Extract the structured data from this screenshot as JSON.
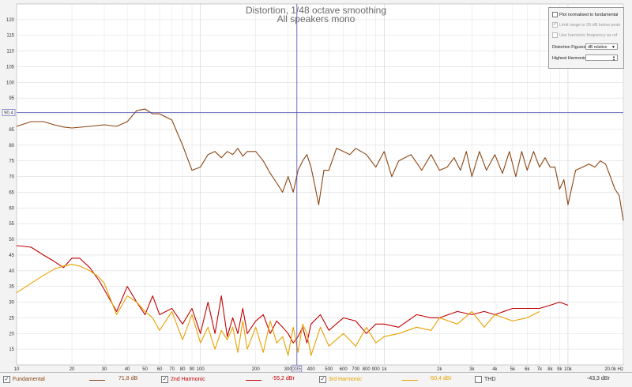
{
  "chart_data": {
    "type": "line",
    "title": "Distortion, 1/48 octave smoothing",
    "subtitle": "All speakers mono",
    "x_scale": "log",
    "xlim": [
      10,
      20000
    ],
    "ylim": [
      10,
      125
    ],
    "grid": true,
    "x_ticks": [
      {
        "v": 10,
        "l": "10"
      },
      {
        "v": 20,
        "l": "20"
      },
      {
        "v": 30,
        "l": "30"
      },
      {
        "v": 40,
        "l": "40"
      },
      {
        "v": 50,
        "l": "50"
      },
      {
        "v": 60,
        "l": "60"
      },
      {
        "v": 70,
        "l": "70"
      },
      {
        "v": 80,
        "l": "80"
      },
      {
        "v": 90,
        "l": "90"
      },
      {
        "v": 100,
        "l": "100"
      },
      {
        "v": 200,
        "l": "200"
      },
      {
        "v": 300,
        "l": "300"
      },
      {
        "v": 400,
        "l": "400"
      },
      {
        "v": 500,
        "l": "500"
      },
      {
        "v": 600,
        "l": "600"
      },
      {
        "v": 700,
        "l": "700"
      },
      {
        "v": 800,
        "l": "800"
      },
      {
        "v": 900,
        "l": "900"
      },
      {
        "v": 1000,
        "l": "1k"
      },
      {
        "v": 2000,
        "l": "2k"
      },
      {
        "v": 3000,
        "l": "3k"
      },
      {
        "v": 4000,
        "l": "4k"
      },
      {
        "v": 5000,
        "l": "5k"
      },
      {
        "v": 6000,
        "l": "6k"
      },
      {
        "v": 7000,
        "l": "7k"
      },
      {
        "v": 8000,
        "l": "8k"
      },
      {
        "v": 9000,
        "l": "9k"
      },
      {
        "v": 10000,
        "l": "10k"
      },
      {
        "v": 20000,
        "l": "20.0k Hz"
      }
    ],
    "y_ticks": [
      15,
      20,
      25,
      30,
      35,
      40,
      45,
      50,
      55,
      60,
      65,
      70,
      75,
      80,
      85,
      90,
      95,
      100,
      105,
      110,
      115,
      120
    ],
    "cursor": {
      "x": 335,
      "x_label": "335",
      "y": 90.4,
      "y_label": "90.4"
    },
    "series": [
      {
        "name": "Fundamental",
        "color": "#8b4513",
        "x": [
          10,
          12,
          14,
          16,
          18,
          20,
          25,
          30,
          35,
          40,
          45,
          50,
          55,
          60,
          70,
          80,
          90,
          100,
          110,
          120,
          130,
          140,
          150,
          160,
          170,
          180,
          200,
          220,
          240,
          260,
          280,
          300,
          320,
          340,
          360,
          380,
          400,
          420,
          440,
          470,
          500,
          550,
          600,
          650,
          700,
          800,
          900,
          1000,
          1100,
          1200,
          1400,
          1600,
          1800,
          2000,
          2200,
          2400,
          2600,
          2800,
          3000,
          3300,
          3600,
          4000,
          4400,
          4800,
          5200,
          5600,
          6000,
          6500,
          7000,
          7500,
          8000,
          8500,
          9000,
          9500,
          10000,
          11000,
          12000,
          13000,
          14000,
          15000,
          16000,
          17000,
          18000,
          19000,
          20000
        ],
        "values": [
          86,
          87.5,
          87.5,
          86.5,
          85.8,
          85.5,
          86,
          86.5,
          86,
          87.5,
          91,
          91.5,
          90,
          90,
          88,
          80,
          72,
          73,
          77,
          78,
          76,
          78,
          77,
          79,
          76.5,
          78,
          78,
          75,
          71,
          68,
          65,
          70,
          65,
          72,
          75,
          77,
          73,
          67,
          61,
          72,
          72,
          79,
          78,
          77,
          79,
          77,
          73,
          78,
          70,
          75,
          77,
          72,
          77,
          72,
          73,
          76,
          72,
          78,
          70,
          78,
          72,
          77,
          71,
          78,
          70,
          78,
          72,
          78,
          73,
          76,
          73,
          73,
          66,
          69,
          61,
          72,
          73,
          74,
          73,
          75,
          74,
          70,
          66,
          64,
          56
        ]
      },
      {
        "name": "2nd Harmonic",
        "color": "#c00000",
        "x": [
          10,
          12,
          14,
          16,
          18,
          20,
          22,
          25,
          28,
          30,
          35,
          40,
          45,
          50,
          55,
          60,
          70,
          80,
          90,
          100,
          110,
          120,
          130,
          140,
          150,
          160,
          170,
          180,
          200,
          220,
          240,
          260,
          280,
          300,
          320,
          340,
          360,
          380,
          400,
          450,
          500,
          600,
          700,
          800,
          900,
          1000,
          1200,
          1500,
          1800,
          2000,
          2500,
          3000,
          3500,
          4000,
          5000,
          6000,
          7000,
          8000,
          9000,
          10000
        ],
        "values": [
          48,
          47.5,
          45,
          43,
          41,
          44,
          44,
          41,
          37,
          34,
          27,
          35,
          30,
          26,
          32,
          26,
          28,
          23,
          28,
          20,
          30,
          20,
          32,
          19,
          25,
          20,
          28,
          20,
          24,
          26,
          20,
          24,
          22,
          20,
          17,
          19,
          22,
          17,
          23,
          26,
          21,
          25,
          24,
          20,
          23,
          23,
          22,
          26,
          25,
          25,
          27,
          26,
          27,
          26,
          28,
          28,
          28,
          29,
          30,
          29
        ]
      },
      {
        "name": "3rd Harmonic",
        "color": "#e8a100",
        "x": [
          10,
          12,
          14,
          16,
          18,
          20,
          22,
          25,
          28,
          30,
          35,
          40,
          45,
          50,
          55,
          60,
          70,
          80,
          90,
          100,
          110,
          120,
          130,
          140,
          150,
          160,
          170,
          180,
          200,
          220,
          240,
          260,
          280,
          300,
          320,
          340,
          360,
          380,
          400,
          450,
          500,
          600,
          700,
          800,
          900,
          1000,
          1200,
          1500,
          1800,
          2000,
          2500,
          3000,
          3500,
          4000,
          5000,
          6000,
          7000
        ],
        "values": [
          33,
          36,
          38.5,
          40.5,
          41.5,
          42,
          41.5,
          40,
          38,
          36,
          26,
          32,
          30,
          27,
          25,
          21,
          27,
          18,
          26,
          17,
          22,
          15,
          21,
          18,
          22,
          14,
          24,
          15,
          22,
          14,
          24,
          17,
          19,
          13,
          22,
          14,
          23,
          20,
          13,
          22,
          16,
          20,
          16,
          22,
          17,
          19,
          20,
          22,
          21,
          25,
          23,
          27,
          22,
          26,
          24,
          25,
          27
        ]
      }
    ],
    "legend_placement": "bottom"
  },
  "panel": {
    "plot_normalised": "Plot normalised to fundamental",
    "limit_range": "Limit range to 30 dB below peak",
    "use_harmonic_freq": "Use harmonic frequency as ref",
    "distortion_figures_label": "Distortion Figures:",
    "distortion_figures_value": "dB relative",
    "highest_harmonic_label": "Highest Harmonic:",
    "highest_harmonic_value": ""
  },
  "legend": {
    "fundamental_label": "Fundamental",
    "fundamental_value": "71,8 dB",
    "h2_label": "2nd Harmonic",
    "h2_value": "-55,2 dBr",
    "h3_label": "3rd Harmonic",
    "h3_value": "-50,4 dBr",
    "thd_label": "THD",
    "thd_value": "-43,3 dBr"
  }
}
